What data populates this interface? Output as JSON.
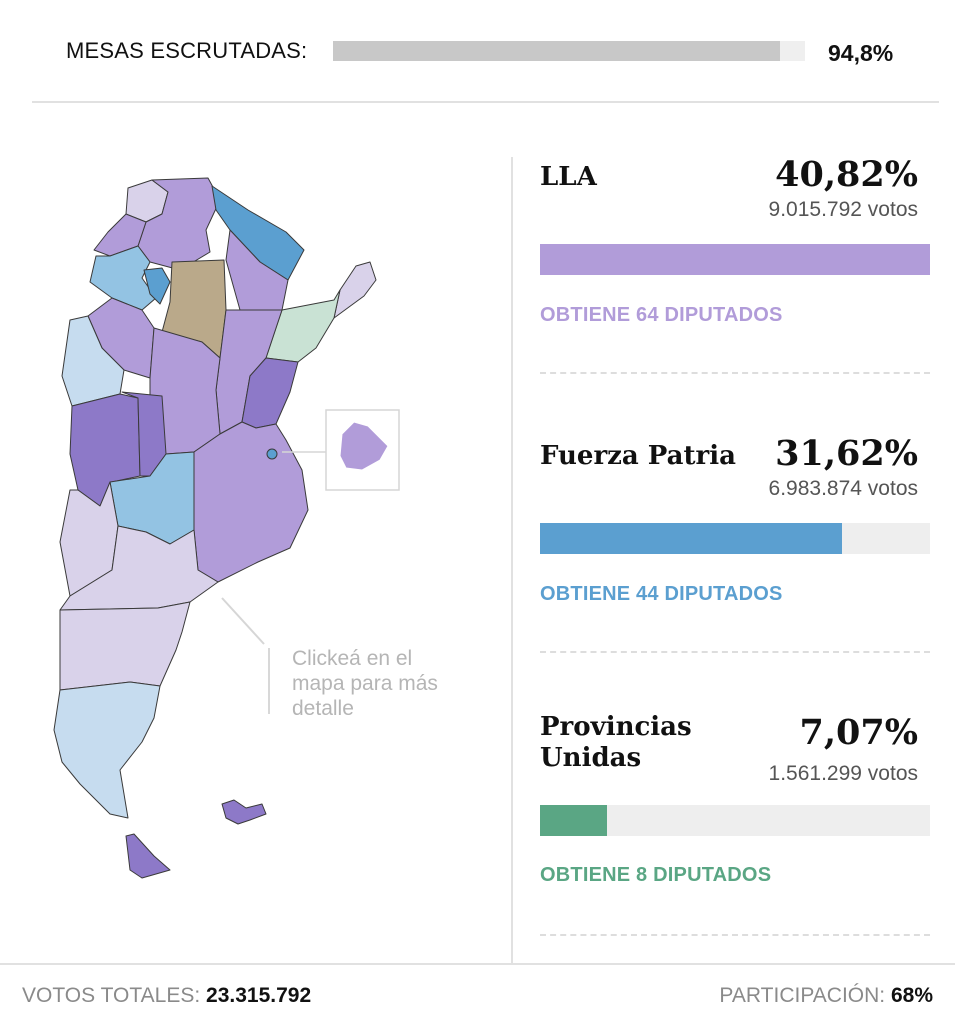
{
  "header": {
    "mesas_label": "MESAS ESCRUTADAS:",
    "mesas_value": "94,8%",
    "mesas_fraction": 0.948
  },
  "map": {
    "hint": "Clickeá en el mapa para más detalle",
    "colors": {
      "lla": "#b19cd9",
      "lla_light": "#d9d2ea",
      "lla_dark": "#8d79c8",
      "fuerza": "#5b9fd0",
      "fuerza_light": "#93c3e3",
      "fuerza_pale": "#c6dcef",
      "provincias": "#c9e2d4",
      "other": "#baa98a"
    }
  },
  "parties": [
    {
      "name": "LLA",
      "pct": "40,82%",
      "votes": "9.015.792 votos",
      "seats": "OBTIENE 64 DIPUTADOS",
      "bar_fraction": 1.0,
      "color": "#b19cd9"
    },
    {
      "name": "Fuerza Patria",
      "pct": "31,62%",
      "votes": "6.983.874 votos",
      "seats": "OBTIENE 44 DIPUTADOS",
      "bar_fraction": 0.775,
      "color": "#5b9fd0"
    },
    {
      "name": "Provincias Unidas",
      "pct": "7,07%",
      "votes": "1.561.299 votos",
      "seats": "OBTIENE 8 DIPUTADOS",
      "bar_fraction": 0.173,
      "color": "#5aa684"
    }
  ],
  "footer": {
    "total_label": "VOTOS TOTALES:",
    "total_value": "23.315.792",
    "participation_label": "PARTICIPACIÓN:",
    "participation_value": "68%"
  }
}
